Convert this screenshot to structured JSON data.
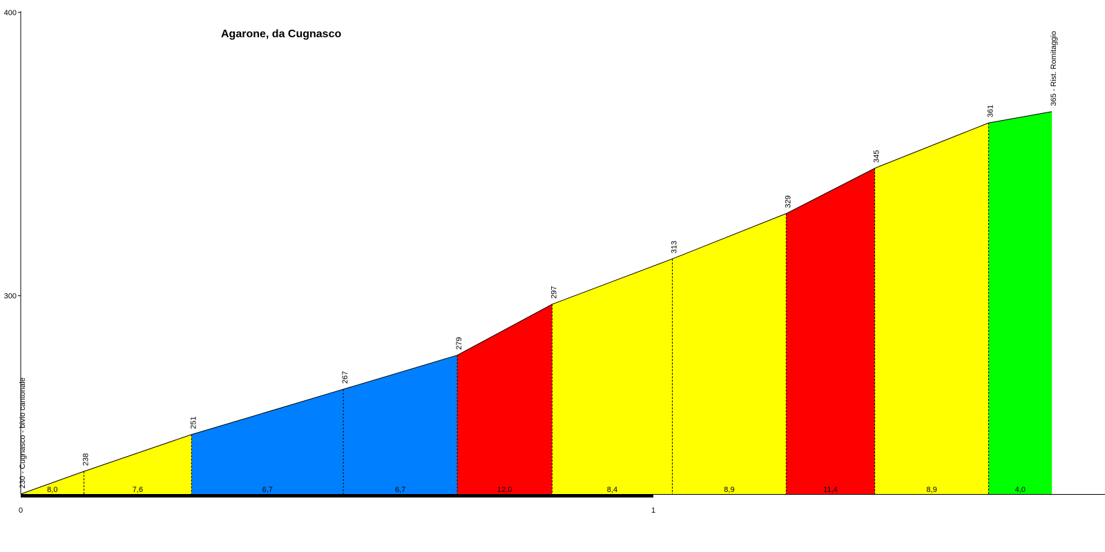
{
  "chart_data": {
    "type": "area",
    "title": "Agarone, da Cugnasco",
    "xlabel": "",
    "ylabel": "",
    "xlim": [
      0,
      1.7
    ],
    "ylim": [
      230,
      400
    ],
    "y_ticks": [
      {
        "value": 400,
        "label": "400"
      },
      {
        "value": 300,
        "label": "300"
      }
    ],
    "x_ticks": [
      {
        "value": 0,
        "label": "0"
      },
      {
        "value": 1,
        "label": "1"
      }
    ],
    "grid": false,
    "points": [
      {
        "x": 0.0,
        "y": 230,
        "label": "230 - Cugnasco - bivio cantonale"
      },
      {
        "x": 0.1,
        "y": 238,
        "label": "238"
      },
      {
        "x": 0.27,
        "y": 251,
        "label": "251"
      },
      {
        "x": 0.51,
        "y": 267,
        "label": "267"
      },
      {
        "x": 0.69,
        "y": 279,
        "label": "279"
      },
      {
        "x": 0.84,
        "y": 297,
        "label": "297"
      },
      {
        "x": 1.03,
        "y": 313,
        "label": "313"
      },
      {
        "x": 1.21,
        "y": 329,
        "label": "329"
      },
      {
        "x": 1.35,
        "y": 345,
        "label": "345"
      },
      {
        "x": 1.53,
        "y": 361,
        "label": "361"
      },
      {
        "x": 1.63,
        "y": 365,
        "label": "365 - Rist. Romitaggio"
      }
    ],
    "segments": [
      {
        "grade": "8,0",
        "color": "#ffff00"
      },
      {
        "grade": "7,6",
        "color": "#ffff00"
      },
      {
        "grade": "6,7",
        "color": "#0080ff"
      },
      {
        "grade": "6,7",
        "color": "#0080ff"
      },
      {
        "grade": "12,0",
        "color": "#ff0000"
      },
      {
        "grade": "8,4",
        "color": "#ffff00"
      },
      {
        "grade": "8,9",
        "color": "#ffff00"
      },
      {
        "grade": "11,4",
        "color": "#ff0000"
      },
      {
        "grade": "8,9",
        "color": "#ffff00"
      },
      {
        "grade": "4,0",
        "color": "#00ff00"
      }
    ]
  }
}
